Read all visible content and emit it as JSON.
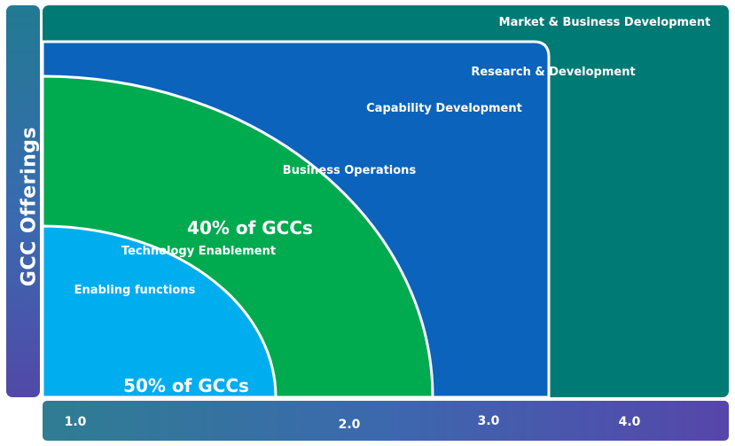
{
  "y_axis_label": "GCC Offerings",
  "x_axis_ticks": [
    "1.0",
    "2.0",
    "3.0",
    "4.0"
  ],
  "layers": {
    "market": "Market & Business Development",
    "research": "Research & Development",
    "capability": "Capability Development",
    "business_ops": "Business Operations",
    "technology": "Technology Enablement",
    "enabling": "Enabling functions"
  },
  "callouts": {
    "green": "40% of GCCs",
    "blue": "50% of GCCs"
  },
  "colors": {
    "market": "#007a74",
    "rd_capability": "#0b63bb",
    "business_ops": "#00aa4f",
    "enabling": "#00adef",
    "outline": "#ffffff"
  }
}
